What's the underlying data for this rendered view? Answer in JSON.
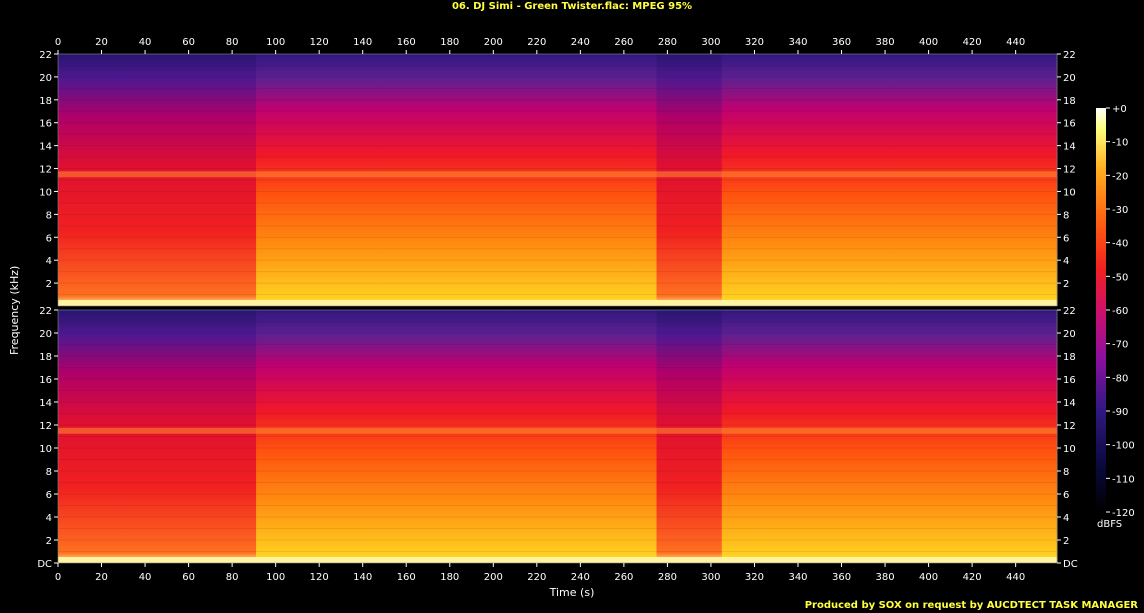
{
  "title": "06. DJ Simi - Green Twister.flac: MPEG 95%",
  "footer": "Produced by SOX on request by AUCDTECT TASK MANAGER",
  "colorbar_label": "dBFS",
  "colors": {
    "title": "#ffff40",
    "background": "#000000"
  },
  "chart_data": {
    "type": "heatmap",
    "title": "06. DJ Simi - Green Twister.flac: MPEG 95%",
    "xlabel": "Time (s)",
    "ylabel": "Frequency (kHz)",
    "xlim": [
      0,
      459
    ],
    "ylim": [
      0,
      22
    ],
    "x_ticks": [
      0,
      20,
      40,
      60,
      80,
      100,
      120,
      140,
      160,
      180,
      200,
      220,
      240,
      260,
      280,
      300,
      320,
      340,
      360,
      380,
      400,
      420,
      440
    ],
    "y_ticks": [
      "DC",
      "2",
      "4",
      "6",
      "8",
      "10",
      "12",
      "14",
      "16",
      "18",
      "20",
      "22"
    ],
    "colorbar_ticks": [
      "+0",
      "-10",
      "-20",
      "-30",
      "-40",
      "-50",
      "-60",
      "-70",
      "-80",
      "-90",
      "-100",
      "-110",
      "-120"
    ],
    "colorbar_unit": "dBFS",
    "channels": 2
  }
}
